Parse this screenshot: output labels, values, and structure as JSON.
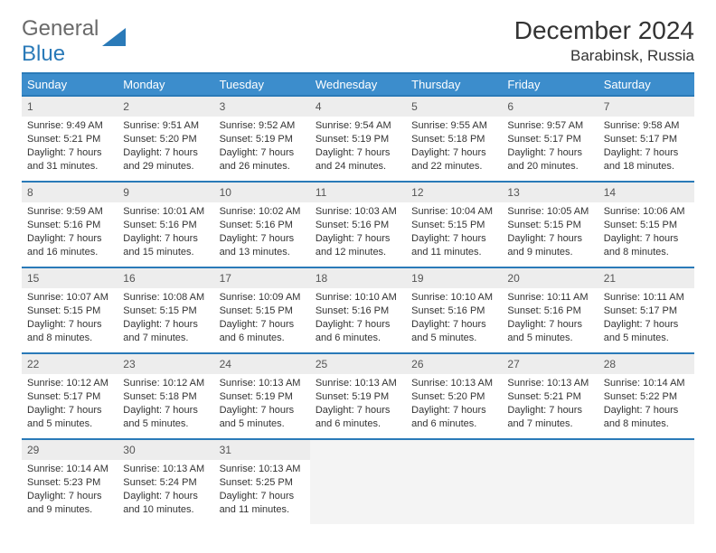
{
  "logo": {
    "general": "General",
    "blue": "Blue"
  },
  "title": "December 2024",
  "location": "Barabinsk, Russia",
  "colors": {
    "header_bg": "#3c8dcc",
    "border": "#2a7ab8",
    "daynum_bg": "#ededed",
    "empty_bg": "#f4f4f4"
  },
  "weekdays": [
    "Sunday",
    "Monday",
    "Tuesday",
    "Wednesday",
    "Thursday",
    "Friday",
    "Saturday"
  ],
  "days": [
    {
      "n": "1",
      "sr": "Sunrise: 9:49 AM",
      "ss": "Sunset: 5:21 PM",
      "d1": "Daylight: 7 hours",
      "d2": "and 31 minutes."
    },
    {
      "n": "2",
      "sr": "Sunrise: 9:51 AM",
      "ss": "Sunset: 5:20 PM",
      "d1": "Daylight: 7 hours",
      "d2": "and 29 minutes."
    },
    {
      "n": "3",
      "sr": "Sunrise: 9:52 AM",
      "ss": "Sunset: 5:19 PM",
      "d1": "Daylight: 7 hours",
      "d2": "and 26 minutes."
    },
    {
      "n": "4",
      "sr": "Sunrise: 9:54 AM",
      "ss": "Sunset: 5:19 PM",
      "d1": "Daylight: 7 hours",
      "d2": "and 24 minutes."
    },
    {
      "n": "5",
      "sr": "Sunrise: 9:55 AM",
      "ss": "Sunset: 5:18 PM",
      "d1": "Daylight: 7 hours",
      "d2": "and 22 minutes."
    },
    {
      "n": "6",
      "sr": "Sunrise: 9:57 AM",
      "ss": "Sunset: 5:17 PM",
      "d1": "Daylight: 7 hours",
      "d2": "and 20 minutes."
    },
    {
      "n": "7",
      "sr": "Sunrise: 9:58 AM",
      "ss": "Sunset: 5:17 PM",
      "d1": "Daylight: 7 hours",
      "d2": "and 18 minutes."
    },
    {
      "n": "8",
      "sr": "Sunrise: 9:59 AM",
      "ss": "Sunset: 5:16 PM",
      "d1": "Daylight: 7 hours",
      "d2": "and 16 minutes."
    },
    {
      "n": "9",
      "sr": "Sunrise: 10:01 AM",
      "ss": "Sunset: 5:16 PM",
      "d1": "Daylight: 7 hours",
      "d2": "and 15 minutes."
    },
    {
      "n": "10",
      "sr": "Sunrise: 10:02 AM",
      "ss": "Sunset: 5:16 PM",
      "d1": "Daylight: 7 hours",
      "d2": "and 13 minutes."
    },
    {
      "n": "11",
      "sr": "Sunrise: 10:03 AM",
      "ss": "Sunset: 5:16 PM",
      "d1": "Daylight: 7 hours",
      "d2": "and 12 minutes."
    },
    {
      "n": "12",
      "sr": "Sunrise: 10:04 AM",
      "ss": "Sunset: 5:15 PM",
      "d1": "Daylight: 7 hours",
      "d2": "and 11 minutes."
    },
    {
      "n": "13",
      "sr": "Sunrise: 10:05 AM",
      "ss": "Sunset: 5:15 PM",
      "d1": "Daylight: 7 hours",
      "d2": "and 9 minutes."
    },
    {
      "n": "14",
      "sr": "Sunrise: 10:06 AM",
      "ss": "Sunset: 5:15 PM",
      "d1": "Daylight: 7 hours",
      "d2": "and 8 minutes."
    },
    {
      "n": "15",
      "sr": "Sunrise: 10:07 AM",
      "ss": "Sunset: 5:15 PM",
      "d1": "Daylight: 7 hours",
      "d2": "and 8 minutes."
    },
    {
      "n": "16",
      "sr": "Sunrise: 10:08 AM",
      "ss": "Sunset: 5:15 PM",
      "d1": "Daylight: 7 hours",
      "d2": "and 7 minutes."
    },
    {
      "n": "17",
      "sr": "Sunrise: 10:09 AM",
      "ss": "Sunset: 5:15 PM",
      "d1": "Daylight: 7 hours",
      "d2": "and 6 minutes."
    },
    {
      "n": "18",
      "sr": "Sunrise: 10:10 AM",
      "ss": "Sunset: 5:16 PM",
      "d1": "Daylight: 7 hours",
      "d2": "and 6 minutes."
    },
    {
      "n": "19",
      "sr": "Sunrise: 10:10 AM",
      "ss": "Sunset: 5:16 PM",
      "d1": "Daylight: 7 hours",
      "d2": "and 5 minutes."
    },
    {
      "n": "20",
      "sr": "Sunrise: 10:11 AM",
      "ss": "Sunset: 5:16 PM",
      "d1": "Daylight: 7 hours",
      "d2": "and 5 minutes."
    },
    {
      "n": "21",
      "sr": "Sunrise: 10:11 AM",
      "ss": "Sunset: 5:17 PM",
      "d1": "Daylight: 7 hours",
      "d2": "and 5 minutes."
    },
    {
      "n": "22",
      "sr": "Sunrise: 10:12 AM",
      "ss": "Sunset: 5:17 PM",
      "d1": "Daylight: 7 hours",
      "d2": "and 5 minutes."
    },
    {
      "n": "23",
      "sr": "Sunrise: 10:12 AM",
      "ss": "Sunset: 5:18 PM",
      "d1": "Daylight: 7 hours",
      "d2": "and 5 minutes."
    },
    {
      "n": "24",
      "sr": "Sunrise: 10:13 AM",
      "ss": "Sunset: 5:19 PM",
      "d1": "Daylight: 7 hours",
      "d2": "and 5 minutes."
    },
    {
      "n": "25",
      "sr": "Sunrise: 10:13 AM",
      "ss": "Sunset: 5:19 PM",
      "d1": "Daylight: 7 hours",
      "d2": "and 6 minutes."
    },
    {
      "n": "26",
      "sr": "Sunrise: 10:13 AM",
      "ss": "Sunset: 5:20 PM",
      "d1": "Daylight: 7 hours",
      "d2": "and 6 minutes."
    },
    {
      "n": "27",
      "sr": "Sunrise: 10:13 AM",
      "ss": "Sunset: 5:21 PM",
      "d1": "Daylight: 7 hours",
      "d2": "and 7 minutes."
    },
    {
      "n": "28",
      "sr": "Sunrise: 10:14 AM",
      "ss": "Sunset: 5:22 PM",
      "d1": "Daylight: 7 hours",
      "d2": "and 8 minutes."
    },
    {
      "n": "29",
      "sr": "Sunrise: 10:14 AM",
      "ss": "Sunset: 5:23 PM",
      "d1": "Daylight: 7 hours",
      "d2": "and 9 minutes."
    },
    {
      "n": "30",
      "sr": "Sunrise: 10:13 AM",
      "ss": "Sunset: 5:24 PM",
      "d1": "Daylight: 7 hours",
      "d2": "and 10 minutes."
    },
    {
      "n": "31",
      "sr": "Sunrise: 10:13 AM",
      "ss": "Sunset: 5:25 PM",
      "d1": "Daylight: 7 hours",
      "d2": "and 11 minutes."
    }
  ]
}
